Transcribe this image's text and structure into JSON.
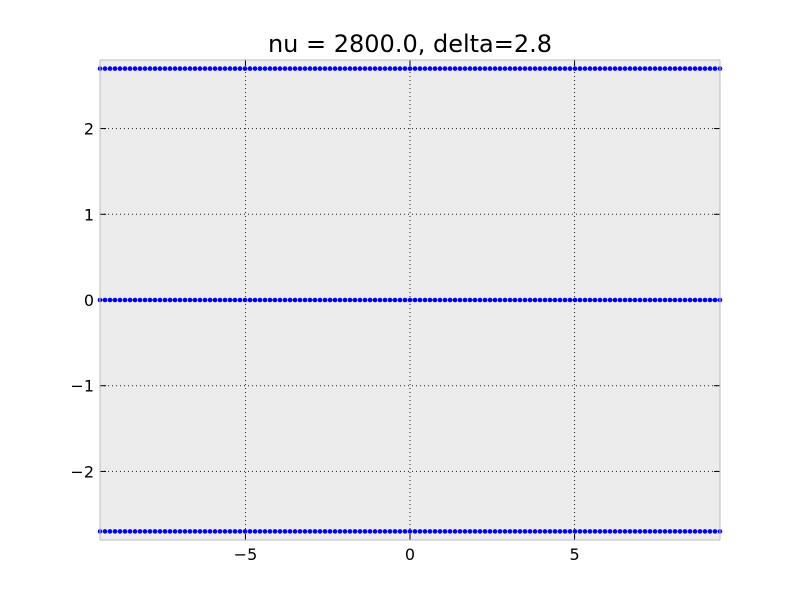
{
  "chart_data": {
    "type": "scatter",
    "title": "nu = 2800.0, delta=2.8",
    "xlabel": "",
    "ylabel": "",
    "xlim": [
      -9.42,
      9.42
    ],
    "ylim": [
      -2.8,
      2.8
    ],
    "grid": true,
    "marker_color": "#0000ff",
    "background_color": "#ececec",
    "x_ticks": [
      {
        "value": -5,
        "label": "−5"
      },
      {
        "value": 0,
        "label": "0"
      },
      {
        "value": 5,
        "label": "5"
      }
    ],
    "y_ticks": [
      {
        "value": -2,
        "label": "−2"
      },
      {
        "value": -1,
        "label": "−1"
      },
      {
        "value": 0,
        "label": "0"
      },
      {
        "value": 1,
        "label": "1"
      },
      {
        "value": 2,
        "label": "2"
      }
    ],
    "series": [
      {
        "x_start": -9.42,
        "x_end": 9.42,
        "count": 125,
        "y": 2.7
      },
      {
        "x_start": -9.42,
        "x_end": 9.42,
        "count": 125,
        "y": 0
      },
      {
        "x_start": -9.42,
        "x_end": 9.42,
        "count": 125,
        "y": -2.7
      }
    ]
  }
}
